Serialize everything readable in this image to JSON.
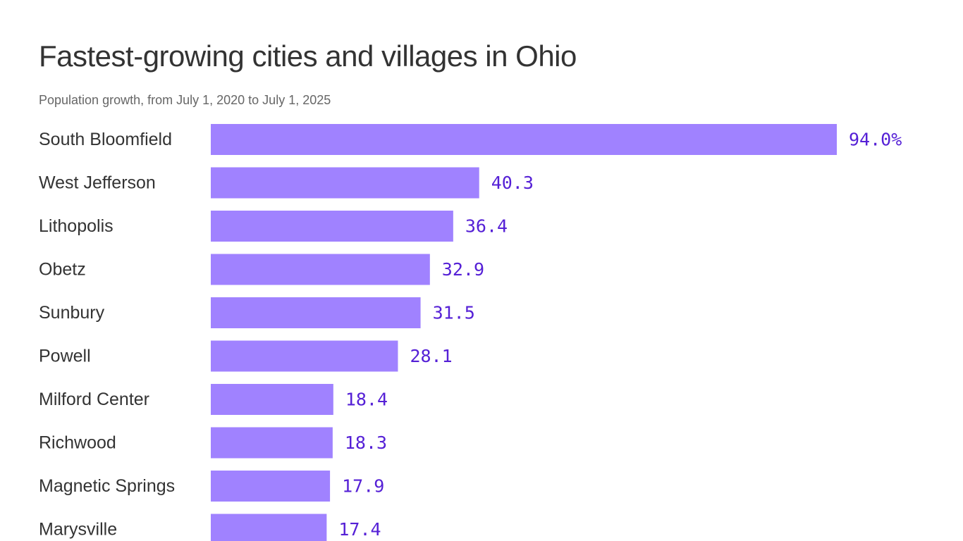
{
  "chart_data": {
    "type": "bar",
    "orientation": "horizontal",
    "title": "Fastest-growing cities and villages in Ohio",
    "subtitle": "Population growth, from July 1, 2020 to July 1, 2025",
    "categories": [
      "South Bloomfield",
      "West Jefferson",
      "Lithopolis",
      "Obetz",
      "Sunbury",
      "Powell",
      "Milford Center",
      "Richwood",
      "Magnetic Springs",
      "Marysville"
    ],
    "values": [
      94.0,
      40.3,
      36.4,
      32.9,
      31.5,
      28.1,
      18.4,
      18.3,
      17.9,
      17.4
    ],
    "value_labels": [
      "94.0%",
      "40.3",
      "36.4",
      "32.9",
      "31.5",
      "28.1",
      "18.4",
      "18.3",
      "17.9",
      "17.4"
    ],
    "unit": "%",
    "xlim": [
      0,
      94.0
    ],
    "grid": false,
    "legend": "none",
    "colors": {
      "bar": "#a082ff",
      "value_text": "#5520d6",
      "label_text": "#333333",
      "subtitle_text": "#666666"
    }
  }
}
